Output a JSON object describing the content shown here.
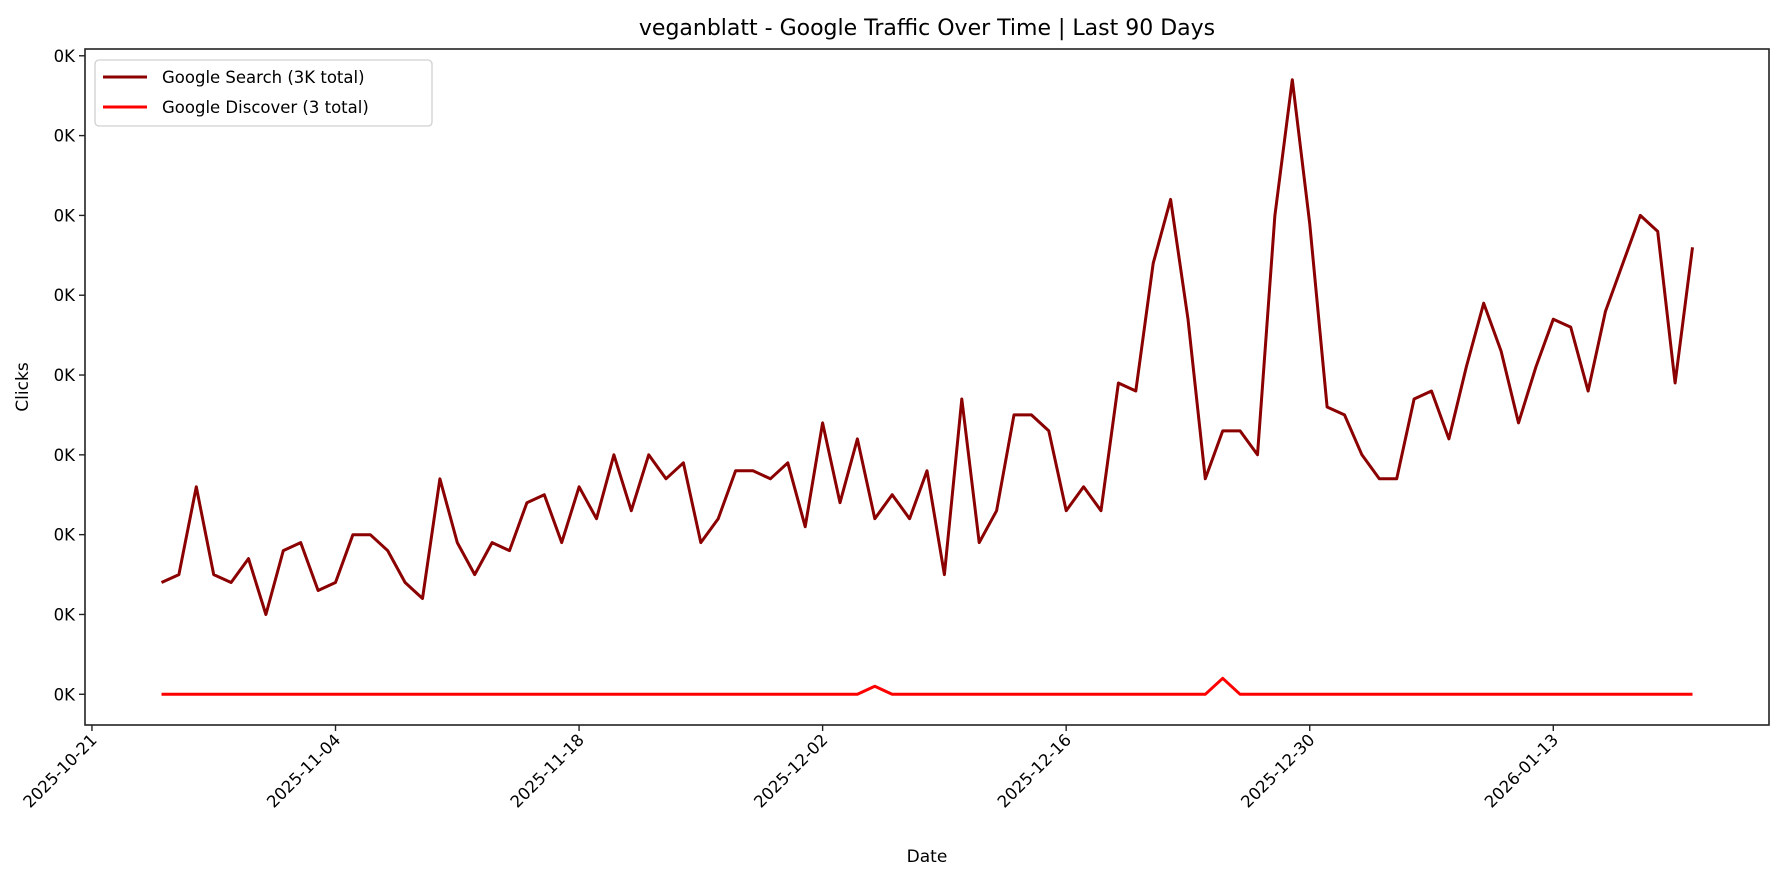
{
  "chart_data": {
    "type": "line",
    "title": "veganblatt - Google Traffic Over Time | Last 90 Days",
    "xlabel": "Date",
    "ylabel": "Clicks",
    "ylim": [
      -3.85,
      80.85
    ],
    "xlim": [
      "2025-10-20",
      "2026-01-25"
    ],
    "grid": false,
    "legend_position": "top-left",
    "yticks": [
      0,
      10,
      20,
      30,
      40,
      50,
      60,
      70,
      80
    ],
    "ytick_labels": [
      "0K",
      "0K",
      "0K",
      "0K",
      "0K",
      "0K",
      "0K",
      "0K",
      "0K"
    ],
    "xticks": [
      "2025-10-21",
      "2025-11-04",
      "2025-11-18",
      "2025-12-02",
      "2025-12-16",
      "2025-12-30",
      "2026-01-13"
    ],
    "x": [
      "2025-10-25",
      "2025-10-26",
      "2025-10-27",
      "2025-10-28",
      "2025-10-29",
      "2025-10-30",
      "2025-10-31",
      "2025-11-01",
      "2025-11-02",
      "2025-11-03",
      "2025-11-04",
      "2025-11-05",
      "2025-11-06",
      "2025-11-07",
      "2025-11-08",
      "2025-11-09",
      "2025-11-10",
      "2025-11-11",
      "2025-11-12",
      "2025-11-13",
      "2025-11-14",
      "2025-11-15",
      "2025-11-16",
      "2025-11-17",
      "2025-11-18",
      "2025-11-19",
      "2025-11-20",
      "2025-11-21",
      "2025-11-22",
      "2025-11-23",
      "2025-11-24",
      "2025-11-25",
      "2025-11-26",
      "2025-11-27",
      "2025-11-28",
      "2025-11-29",
      "2025-11-30",
      "2025-12-01",
      "2025-12-02",
      "2025-12-03",
      "2025-12-04",
      "2025-12-05",
      "2025-12-06",
      "2025-12-07",
      "2025-12-08",
      "2025-12-09",
      "2025-12-10",
      "2025-12-11",
      "2025-12-12",
      "2025-12-13",
      "2025-12-14",
      "2025-12-15",
      "2025-12-16",
      "2025-12-17",
      "2025-12-18",
      "2025-12-19",
      "2025-12-20",
      "2025-12-21",
      "2025-12-22",
      "2025-12-23",
      "2025-12-24",
      "2025-12-25",
      "2025-12-26",
      "2025-12-27",
      "2025-12-28",
      "2025-12-29",
      "2025-12-30",
      "2025-12-31",
      "2026-01-01",
      "2026-01-02",
      "2026-01-03",
      "2026-01-04",
      "2026-01-05",
      "2026-01-06",
      "2026-01-07",
      "2026-01-08",
      "2026-01-09",
      "2026-01-10",
      "2026-01-11",
      "2026-01-12",
      "2026-01-13",
      "2026-01-14",
      "2026-01-15",
      "2026-01-16",
      "2026-01-17",
      "2026-01-18",
      "2026-01-19",
      "2026-01-20",
      "2026-01-21"
    ],
    "series": [
      {
        "name": "Google Search (3K total)",
        "color": "#8b0000",
        "values": [
          14,
          15,
          26,
          15,
          14,
          17,
          10,
          18,
          19,
          13,
          14,
          20,
          20,
          18,
          14,
          12,
          27,
          19,
          15,
          19,
          18,
          24,
          25,
          19,
          26,
          22,
          30,
          23,
          30,
          27,
          29,
          19,
          22,
          28,
          28,
          27,
          29,
          21,
          34,
          24,
          32,
          22,
          25,
          22,
          28,
          15,
          37,
          19,
          23,
          35,
          35,
          33,
          23,
          26,
          23,
          39,
          38,
          54,
          62,
          47,
          27,
          33,
          33,
          30,
          60,
          77,
          59,
          36,
          35,
          30,
          27,
          27,
          37,
          38,
          32,
          41,
          49,
          43,
          34,
          41,
          47,
          46,
          38,
          48,
          54,
          60,
          58,
          39,
          56
        ]
      },
      {
        "name": "Google Discover (3 total)",
        "color": "#ff0000",
        "values": [
          0,
          0,
          0,
          0,
          0,
          0,
          0,
          0,
          0,
          0,
          0,
          0,
          0,
          0,
          0,
          0,
          0,
          0,
          0,
          0,
          0,
          0,
          0,
          0,
          0,
          0,
          0,
          0,
          0,
          0,
          0,
          0,
          0,
          0,
          0,
          0,
          0,
          0,
          0,
          0,
          0,
          1,
          0,
          0,
          0,
          0,
          0,
          0,
          0,
          0,
          0,
          0,
          0,
          0,
          0,
          0,
          0,
          0,
          0,
          0,
          0,
          2,
          0,
          0,
          0,
          0,
          0,
          0,
          0,
          0,
          0,
          0,
          0,
          0,
          0,
          0,
          0,
          0,
          0,
          0,
          0,
          0,
          0,
          0,
          0,
          0,
          0,
          0,
          0
        ]
      }
    ]
  }
}
